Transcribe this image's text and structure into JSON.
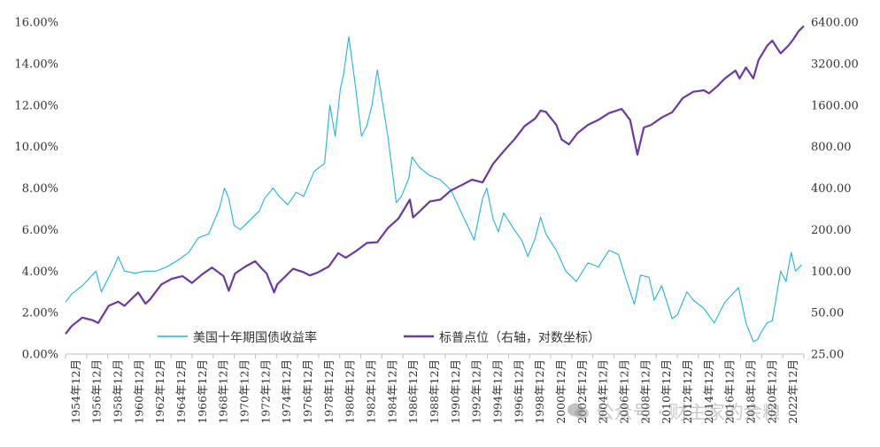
{
  "watermark": {
    "icon": "wechat-icon",
    "text": "公众号 · 财主家的余粮"
  },
  "chart_data": {
    "type": "line",
    "x_labels": [
      "1954年12月",
      "1956年12月",
      "1958年12月",
      "1960年12月",
      "1962年12月",
      "1964年12月",
      "1966年12月",
      "1968年12月",
      "1970年12月",
      "1972年12月",
      "1974年12月",
      "1976年12月",
      "1978年12月",
      "1980年12月",
      "1982年12月",
      "1984年12月",
      "1986年12月",
      "1988年12月",
      "1990年12月",
      "1992年12月",
      "1994年12月",
      "1996年12月",
      "1998年12月",
      "2000年12月",
      "2002年12月",
      "2004年12月",
      "2006年12月",
      "2008年12月",
      "2010年12月",
      "2012年12月",
      "2014年12月",
      "2016年12月",
      "2018年12月",
      "2020年12月",
      "2022年12月"
    ],
    "left_axis": {
      "ticks": [
        "0.00%",
        "2.00%",
        "4.00%",
        "6.00%",
        "8.00%",
        "10.00%",
        "12.00%",
        "14.00%",
        "16.00%"
      ],
      "ylim": [
        0,
        16
      ]
    },
    "right_axis": {
      "scale": "log",
      "ticks": [
        "25.00",
        "50.00",
        "100.00",
        "200.00",
        "400.00",
        "800.00",
        "1600.00",
        "3200.00",
        "6400.00"
      ],
      "ylim": [
        25,
        6400
      ]
    },
    "legend": {
      "placement": "inside-bottom-left"
    },
    "series": [
      {
        "name": "美国十年期国债收益率",
        "axis": "left",
        "color": "#1fb3e0",
        "x": [
          1954.9,
          1955.5,
          1956.5,
          1957.8,
          1958.3,
          1959.5,
          1959.9,
          1960.5,
          1961.5,
          1962.5,
          1963.5,
          1964.5,
          1965.5,
          1966.6,
          1967.5,
          1968.5,
          1969.5,
          1970.0,
          1970.4,
          1970.9,
          1971.5,
          1972.5,
          1973.3,
          1973.8,
          1974.6,
          1975.2,
          1976.0,
          1976.8,
          1977.5,
          1978.5,
          1979.5,
          1980.0,
          1980.5,
          1981.0,
          1981.3,
          1981.8,
          1982.4,
          1983.0,
          1983.5,
          1984.0,
          1984.5,
          1985.5,
          1986.3,
          1986.8,
          1987.5,
          1987.8,
          1988.5,
          1989.5,
          1990.5,
          1991.5,
          1992.5,
          1993.7,
          1994.5,
          1994.9,
          1995.5,
          1996.0,
          1996.5,
          1997.5,
          1998.2,
          1998.8,
          1999.5,
          2000.0,
          2000.5,
          2001.5,
          2002.4,
          2003.4,
          2004.5,
          2005.5,
          2006.5,
          2007.4,
          2008.0,
          2008.9,
          2009.5,
          2010.3,
          2010.8,
          2011.5,
          2012.5,
          2013.0,
          2013.9,
          2014.5,
          2015.5,
          2016.5,
          2017.5,
          2018.8,
          2019.5,
          2020.2,
          2020.6,
          2021.0,
          2021.5,
          2022.0,
          2022.8,
          2023.3,
          2023.8,
          2024.2,
          2024.8
        ],
        "values": [
          2.5,
          2.9,
          3.3,
          4.0,
          3.0,
          4.2,
          4.7,
          4.0,
          3.9,
          4.0,
          4.0,
          4.2,
          4.5,
          4.9,
          5.6,
          5.8,
          7.0,
          8.0,
          7.5,
          6.2,
          6.0,
          6.5,
          6.9,
          7.5,
          8.0,
          7.6,
          7.2,
          7.8,
          7.6,
          8.8,
          9.2,
          12.0,
          10.5,
          12.8,
          13.5,
          15.3,
          13.0,
          10.5,
          11.0,
          12.0,
          13.7,
          10.5,
          7.3,
          7.6,
          8.5,
          9.5,
          9.0,
          8.6,
          8.4,
          7.9,
          6.8,
          5.5,
          7.5,
          8.0,
          6.5,
          5.9,
          6.8,
          6.0,
          5.5,
          4.7,
          5.6,
          6.6,
          5.8,
          5.0,
          4.0,
          3.5,
          4.4,
          4.2,
          5.0,
          4.8,
          3.8,
          2.4,
          3.8,
          3.7,
          2.6,
          3.3,
          1.7,
          1.9,
          3.0,
          2.6,
          2.2,
          1.5,
          2.5,
          3.2,
          1.5,
          0.6,
          0.7,
          1.1,
          1.5,
          1.6,
          4.0,
          3.5,
          4.9,
          4.0,
          4.3
        ]
      },
      {
        "name": "标普点位（右轴，对数坐标）",
        "axis": "right",
        "color": "#6c38a1",
        "x": [
          1954.9,
          1955.5,
          1956.5,
          1957.5,
          1958.0,
          1959.0,
          1959.9,
          1960.5,
          1961.8,
          1962.5,
          1962.9,
          1964.0,
          1965.0,
          1966.0,
          1966.9,
          1967.9,
          1968.8,
          1969.9,
          1970.4,
          1971.0,
          1972.0,
          1972.9,
          1973.5,
          1974.0,
          1974.7,
          1975.0,
          1975.8,
          1976.5,
          1977.5,
          1978.1,
          1978.9,
          1979.9,
          1980.8,
          1981.5,
          1982.5,
          1983.5,
          1984.5,
          1985.5,
          1986.5,
          1987.6,
          1987.9,
          1988.5,
          1989.5,
          1990.5,
          1991.5,
          1992.5,
          1993.5,
          1994.5,
          1995.5,
          1996.5,
          1997.5,
          1998.5,
          1999.5,
          2000.0,
          2000.5,
          2001.5,
          2002.0,
          2002.7,
          2003.5,
          2004.5,
          2005.5,
          2006.5,
          2007.7,
          2008.5,
          2009.2,
          2009.8,
          2010.5,
          2011.5,
          2012.5,
          2013.5,
          2014.5,
          2015.5,
          2016.0,
          2016.8,
          2017.5,
          2018.5,
          2018.9,
          2019.5,
          2020.2,
          2020.7,
          2021.5,
          2022.0,
          2022.8,
          2023.5,
          2024.0,
          2024.5,
          2025.0
        ],
        "values": [
          35,
          40,
          46,
          44,
          42,
          56,
          60,
          56,
          70,
          58,
          62,
          80,
          88,
          92,
          82,
          95,
          106,
          92,
          72,
          96,
          108,
          118,
          105,
          96,
          70,
          80,
          92,
          104,
          98,
          93,
          98,
          108,
          135,
          125,
          140,
          160,
          162,
          205,
          240,
          330,
          245,
          270,
          320,
          330,
          385,
          420,
          460,
          440,
          600,
          740,
          900,
          1130,
          1280,
          1460,
          1430,
          1150,
          900,
          830,
          1000,
          1150,
          1250,
          1400,
          1500,
          1250,
          700,
          1100,
          1150,
          1300,
          1420,
          1800,
          2000,
          2050,
          1950,
          2200,
          2500,
          2850,
          2500,
          3000,
          2500,
          3400,
          4300,
          4700,
          3800,
          4300,
          4800,
          5500,
          6000
        ]
      }
    ]
  }
}
